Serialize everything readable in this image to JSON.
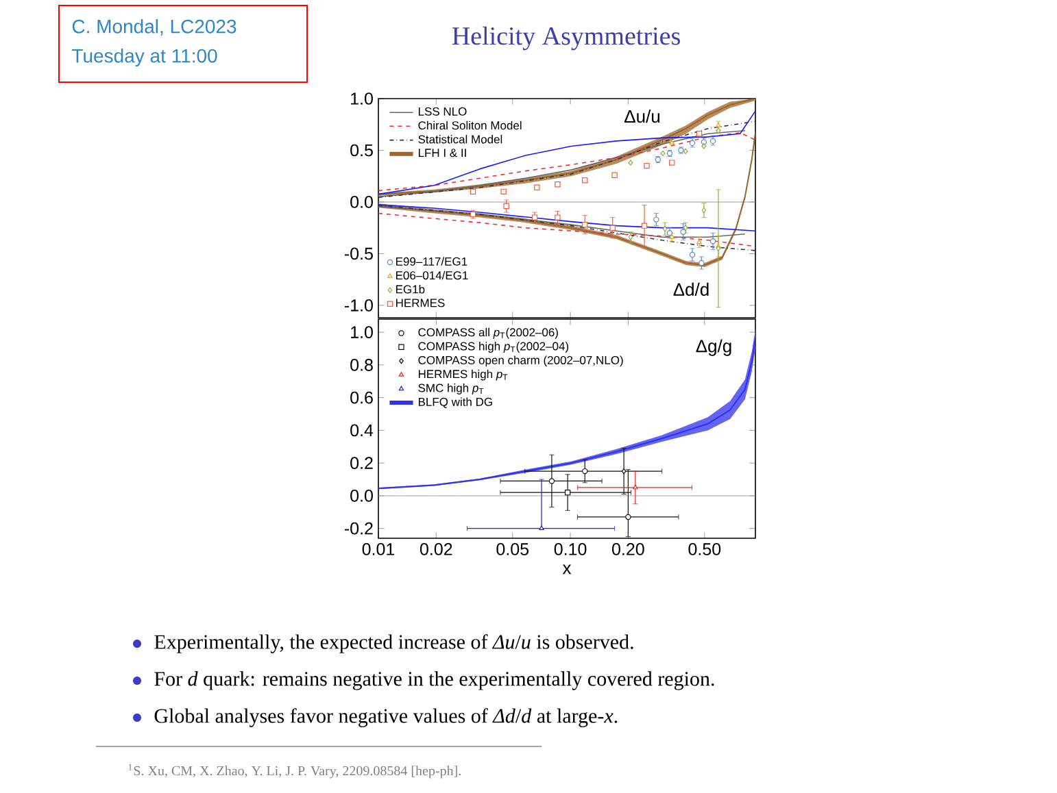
{
  "chart_data": [
    {
      "type": "line",
      "log": "x",
      "xlim": [
        0.01,
        0.92
      ],
      "ylim": [
        -1.12,
        1.0
      ],
      "tick_labels": "y",
      "legend": "left",
      "xticks": [
        0.01,
        0.02,
        0.05,
        0.1,
        0.2,
        0.5
      ],
      "yticks": [
        {
          "value": -1,
          "label": "-1.0"
        },
        {
          "value": -0.5,
          "label": "-0.5"
        },
        {
          "value": 0,
          "label": "0.0"
        },
        {
          "value": 0.5,
          "label": "0.5"
        },
        {
          "value": 1,
          "label": "1.0"
        }
      ],
      "ref_lines": [
        {
          "axis": "y",
          "value": 0,
          "color": "#999999"
        }
      ],
      "annotations": [
        "Δu/u",
        "Δd/d"
      ],
      "series": [
        {
          "name": "LSS NLO",
          "type": "line",
          "color": "#666666",
          "line_style": "solid",
          "x": [
            0.01,
            0.0195,
            0.0338,
            0.0583,
            0.101,
            0.174,
            0.3,
            0.52,
            0.812
          ],
          "values": [
            0.05,
            0.1,
            0.16,
            0.23,
            0.31,
            0.43,
            0.56,
            0.66,
            0.69
          ]
        },
        {
          "type": "line",
          "color": "#666666",
          "line_style": "solid",
          "x": [
            0.01,
            0.0338,
            0.101,
            0.174,
            0.3,
            0.52,
            0.812
          ],
          "values": [
            -0.044,
            -0.12,
            -0.22,
            -0.28,
            -0.34,
            -0.34,
            -0.31
          ]
        },
        {
          "name": "Chiral Soliton Model",
          "type": "line",
          "color": "#e8303a",
          "line_style": "dashed",
          "x": [
            0.01,
            0.0195,
            0.0338,
            0.0583,
            0.101,
            0.174,
            0.3,
            0.52,
            0.766,
            0.92
          ],
          "values": [
            0.11,
            0.16,
            0.23,
            0.3,
            0.36,
            0.43,
            0.52,
            0.63,
            0.67,
            0.6
          ]
        },
        {
          "type": "line",
          "color": "#e8303a",
          "line_style": "dashed",
          "x": [
            0.01,
            0.0195,
            0.0338,
            0.0583,
            0.101,
            0.174,
            0.3,
            0.52,
            0.766,
            0.92
          ],
          "values": [
            -0.11,
            -0.16,
            -0.2,
            -0.25,
            -0.28,
            -0.31,
            -0.33,
            -0.37,
            -0.41,
            -0.43
          ]
        },
        {
          "name": "Statistical Model",
          "type": "line",
          "color": "#333333",
          "line_style": "dotted",
          "x": [
            0.01,
            0.0338,
            0.101,
            0.174,
            0.3,
            0.52,
            0.92
          ],
          "values": [
            0.044,
            0.14,
            0.27,
            0.41,
            0.58,
            0.71,
            0.78
          ]
        },
        {
          "type": "line",
          "color": "#333333",
          "line_style": "dotted",
          "x": [
            0.01,
            0.0338,
            0.101,
            0.174,
            0.3,
            0.52,
            0.92
          ],
          "values": [
            -0.035,
            -0.12,
            -0.23,
            -0.3,
            -0.37,
            -0.43,
            -0.47
          ]
        },
        {
          "name": "LFH I & II",
          "type": "line",
          "color": "#a0642a",
          "line_style": "solid",
          "x": [
            0.01,
            0.0195,
            0.0338,
            0.0583,
            0.101,
            0.174,
            0.3,
            0.4,
            0.52,
            0.68,
            0.92
          ],
          "values": [
            0.075,
            0.105,
            0.15,
            0.21,
            0.28,
            0.41,
            0.6,
            0.71,
            0.84,
            0.94,
            1.0
          ],
          "lower": [
            0.06,
            0.09,
            0.13,
            0.18,
            0.25,
            0.37,
            0.55,
            0.66,
            0.8,
            0.91,
            0.98
          ],
          "upper": [
            0.085,
            0.12,
            0.17,
            0.23,
            0.3,
            0.44,
            0.63,
            0.74,
            0.87,
            0.97,
            1.0
          ]
        },
        {
          "type": "line",
          "color": "#a0642a",
          "line_style": "solid",
          "x": [
            0.01,
            0.0195,
            0.0338,
            0.0583,
            0.101,
            0.174,
            0.3,
            0.4,
            0.5,
            0.617,
            0.728,
            0.812,
            0.881,
            0.92
          ],
          "values": [
            -0.035,
            -0.09,
            -0.13,
            -0.18,
            -0.25,
            -0.34,
            -0.5,
            -0.59,
            -0.61,
            -0.54,
            -0.26,
            0.05,
            0.41,
            0.67
          ],
          "lower": [
            -0.055,
            -0.11,
            -0.15,
            -0.2,
            -0.27,
            -0.36,
            -0.52,
            -0.61,
            -0.63,
            -0.56,
            -0.28,
            0.03,
            0.39,
            0.65
          ],
          "upper": [
            -0.015,
            -0.07,
            -0.11,
            -0.16,
            -0.23,
            -0.32,
            -0.48,
            -0.57,
            -0.59,
            -0.52,
            -0.24,
            0.07,
            0.43,
            0.69
          ]
        },
        {
          "type": "line",
          "color": "#1a1aff",
          "line_style": "solid",
          "x": [
            0.01,
            0.0195,
            0.0338,
            0.0583,
            0.101,
            0.174,
            0.3,
            0.52,
            0.766,
            0.92
          ],
          "values": [
            0.075,
            0.16,
            0.32,
            0.45,
            0.54,
            0.59,
            0.62,
            0.63,
            0.66,
            0.88
          ]
        },
        {
          "type": "line",
          "color": "#1a1aff",
          "line_style": "solid",
          "x": [
            0.01,
            0.0195,
            0.0338,
            0.0583,
            0.101,
            0.174,
            0.3,
            0.52,
            0.92
          ],
          "values": [
            -0.026,
            -0.06,
            -0.1,
            -0.145,
            -0.19,
            -0.23,
            -0.25,
            -0.25,
            -0.28
          ]
        },
        {
          "name": "E99–117/EG1",
          "type": "scatter",
          "marker": "circle",
          "color": "#5b8ac9",
          "x": [
            0.286,
            0.329,
            0.377,
            0.432,
            0.496,
            0.553,
            0.28,
            0.329,
            0.387,
            0.432,
            0.482,
            0.553
          ],
          "values": [
            0.41,
            0.47,
            0.5,
            0.57,
            0.58,
            0.59,
            -0.17,
            -0.3,
            -0.29,
            -0.51,
            -0.59,
            -0.38
          ],
          "errors": [
            0.03,
            0.03,
            0.03,
            0.04,
            0.04,
            0.04,
            0.06,
            0.05,
            0.08,
            0.06,
            0.06,
            0.08
          ]
        },
        {
          "name": "E06–014/EG1",
          "type": "scatter",
          "marker": "triangle",
          "color": "#e8a020",
          "x": [
            0.338,
            0.59,
            0.338,
            0.469,
            0.59
          ],
          "values": [
            0.57,
            0.74,
            -0.34,
            -0.39,
            -0.43
          ],
          "errors": [
            null,
            0.04,
            0.04,
            0.05,
            0.1
          ]
        },
        {
          "name": "EG1b",
          "type": "scatter",
          "marker": "diamond",
          "color": "#8db040",
          "x": [
            0.206,
            0.303,
            0.398,
            0.496,
            0.59,
            0.206,
            0.311,
            0.398,
            0.496,
            0.59
          ],
          "values": [
            0.38,
            0.47,
            0.49,
            0.54,
            0.69,
            -0.34,
            -0.26,
            -0.25,
            -0.08,
            -0.45
          ],
          "errors": [
            null,
            null,
            null,
            null,
            null,
            0.05,
            0.06,
            0.05,
            0.07,
            0.57
          ]
        },
        {
          "name": "HERMES",
          "type": "scatter",
          "marker": "square",
          "color": "#f0603a",
          "x": [
            0.0311,
            0.0449,
            0.067,
            0.0858,
            0.119,
            0.17,
            0.25,
            0.338,
            0.469,
            0.0311,
            0.0464,
            0.0652,
            0.0858,
            0.119,
            0.166,
            0.243
          ],
          "values": [
            0.1,
            0.1,
            0.14,
            0.17,
            0.21,
            0.26,
            0.35,
            0.38,
            0.66,
            -0.12,
            -0.04,
            -0.15,
            -0.15,
            -0.22,
            -0.25,
            -0.23
          ],
          "errors": [
            null,
            null,
            null,
            null,
            null,
            null,
            null,
            null,
            null,
            0.04,
            0.06,
            0.05,
            0.06,
            0.09,
            0.1,
            0.2
          ]
        }
      ]
    },
    {
      "type": "line",
      "log": "x",
      "xlim": [
        0.01,
        0.92
      ],
      "ylim": [
        -0.26,
        1.08
      ],
      "xlabel": "x",
      "legend": "top left",
      "xticks": [
        0.01,
        0.02,
        0.05,
        {
          "value": 0.1,
          "label": "0.10"
        },
        {
          "value": 0.2,
          "label": "0.20"
        },
        {
          "value": 0.5,
          "label": "0.50"
        }
      ],
      "yticks": [
        {
          "value": -0.2,
          "label": "-0.2"
        },
        {
          "value": 0,
          "label": "0.0"
        },
        0.2,
        0.4,
        0.6,
        0.8,
        {
          "value": 1,
          "label": "1.0"
        }
      ],
      "ref_lines": [
        {
          "axis": "y",
          "value": 0,
          "color": "#999999"
        }
      ],
      "annotations": [
        "Δg/g"
      ],
      "series": [
        {
          "name": "COMPASS all *p*$_{T}$(2002–06)",
          "type": "scatter",
          "marker": "circle",
          "color": "#111111",
          "x": [
            0.08,
            0.119,
            0.2
          ],
          "values": [
            0.09,
            0.15,
            -0.13
          ],
          "errors": [
            [
              -0.07,
              0.25
            ],
            [
              0.08,
              0.22
            ],
            [
              -0.25,
              0.16
            ]
          ],
          "xerrors": [
            [
              0.0432,
              0.146
            ],
            null,
            [
              0.109,
              0.366
            ]
          ]
        },
        {
          "name": "COMPASS high *p*$_{T}$(2002–04)",
          "type": "scatter",
          "marker": "square",
          "color": "#111111",
          "x": [
            0.0968
          ],
          "values": [
            0.02
          ],
          "errors": [
            [
              -0.09,
              0.13
            ]
          ],
          "xerrors": [
            [
              0.0432,
              0.207
            ]
          ]
        },
        {
          "name": "COMPASS open charm (2002–07,NLO)",
          "type": "scatter",
          "marker": "diamond",
          "color": "#111111",
          "x": [
            0.19
          ],
          "values": [
            0.15
          ],
          "errors": [
            [
              0.01,
              0.29
            ]
          ],
          "xerrors": [
            [
              0.058,
              0.3
            ]
          ]
        },
        {
          "name": "HERMES high *p*$_{T}$",
          "type": "scatter",
          "marker": "triangle",
          "color": "#e82020",
          "x": [
            0.218
          ],
          "values": [
            0.05
          ],
          "errors": [
            [
              -0.05,
              0.15
            ]
          ],
          "xerrors": [
            [
              0.109,
              0.43
            ]
          ]
        },
        {
          "name": "SMC high *p*$_{T}$",
          "type": "scatter",
          "marker": "triangle",
          "color": "#2020e0",
          "x": [
            0.0708
          ],
          "values": [
            -0.2
          ],
          "errors": [
            [
              -0.2,
              0.1
            ]
          ],
          "xerrors": [
            [
              0.029,
              0.17
            ]
          ]
        },
        {
          "name": "BLFQ with DG",
          "type": "line",
          "color": "#3030ee",
          "line_style": "solid",
          "x": [
            0.01,
            0.0195,
            0.0338,
            0.0583,
            0.101,
            0.174,
            0.3,
            0.52,
            0.68,
            0.812,
            0.881,
            0.92
          ],
          "values": [
            0.045,
            0.065,
            0.1,
            0.15,
            0.2,
            0.27,
            0.35,
            0.44,
            0.525,
            0.65,
            0.82,
            0.96
          ],
          "lower": [
            0.04,
            0.06,
            0.095,
            0.14,
            0.19,
            0.255,
            0.33,
            0.4,
            0.47,
            0.59,
            0.76,
            0.9
          ],
          "upper": [
            0.05,
            0.07,
            0.105,
            0.16,
            0.21,
            0.285,
            0.37,
            0.48,
            0.58,
            0.71,
            0.88,
            1.02
          ]
        }
      ]
    },
    {
      "type": "other",
      "title": "Helicity Asymmetries",
      "annotations": [
        "C. Mondal, LC2023",
        "Tuesday at 11:00",
        "Experimentally, the expected increase of *Δu*/*u* is observed.",
        "For *d* quark: remains negative in the experimentally covered region.",
        "Global analyses favor negative values of *Δd*/*d* at large-*x*.",
        "$^{1}$S. Xu, CM, X. Zhao, Y. Li, J. P. Vary, 2209.08584 [hep-ph]."
      ]
    }
  ]
}
